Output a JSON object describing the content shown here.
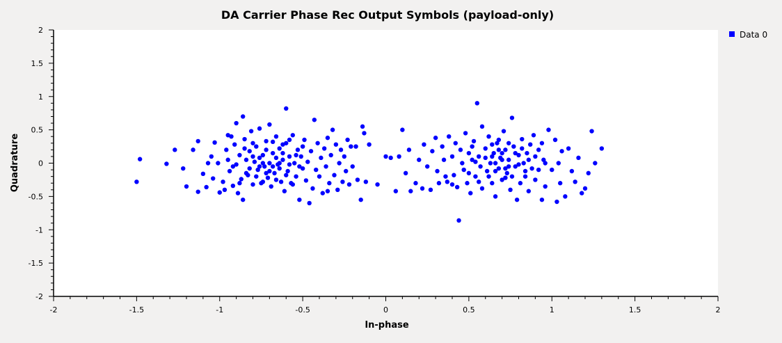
{
  "chart_data": {
    "type": "scatter",
    "title": "DA Carrier Phase Rec Output Symbols (payload-only)",
    "xlabel": "In-phase",
    "ylabel": "Quadrature",
    "xlim": [
      -2,
      2
    ],
    "ylim": [
      -2,
      2
    ],
    "x_ticks": [
      -2,
      -1.5,
      -1,
      -0.5,
      0,
      0.5,
      1,
      1.5,
      2
    ],
    "y_ticks": [
      -2,
      -1.5,
      -1,
      -0.5,
      0,
      0.5,
      1,
      1.5,
      2
    ],
    "x_tick_labels": [
      "-2",
      "-1.5",
      "-1",
      "-0.5",
      "0",
      "0.5",
      "1",
      "1.5",
      "2"
    ],
    "y_tick_labels": [
      "-2",
      "-1.5",
      "-1",
      "-0.5",
      "0",
      "0.5",
      "1",
      "1.5",
      "2"
    ],
    "grid": false,
    "legend_position": "top-right",
    "series": [
      {
        "name": "Data 0",
        "color": "#0000ff",
        "points": [
          [
            -1.5,
            -0.28
          ],
          [
            -1.48,
            0.06
          ],
          [
            -1.32,
            -0.01
          ],
          [
            -1.22,
            -0.08
          ],
          [
            -1.27,
            0.2
          ],
          [
            -1.16,
            0.2
          ],
          [
            -1.13,
            0.33
          ],
          [
            -1.13,
            -0.43
          ],
          [
            -1.1,
            -0.16
          ],
          [
            -1.08,
            -0.36
          ],
          [
            -1.05,
            0.1
          ],
          [
            -1.04,
            -0.23
          ],
          [
            -1.03,
            0.31
          ],
          [
            -1.01,
            0.0
          ],
          [
            -1.0,
            -0.44
          ],
          [
            -0.98,
            -0.28
          ],
          [
            -0.96,
            0.2
          ],
          [
            -0.95,
            0.05
          ],
          [
            -0.94,
            -0.12
          ],
          [
            -0.93,
            0.4
          ],
          [
            -0.92,
            -0.34
          ],
          [
            -0.91,
            0.28
          ],
          [
            -0.9,
            0.6
          ],
          [
            -0.9,
            -0.02
          ],
          [
            -0.89,
            -0.45
          ],
          [
            -0.88,
            0.12
          ],
          [
            -0.87,
            -0.24
          ],
          [
            -0.86,
            0.7
          ],
          [
            -0.86,
            -0.55
          ],
          [
            -0.85,
            0.36
          ],
          [
            -0.84,
            0.05
          ],
          [
            -0.83,
            -0.18
          ],
          [
            -0.82,
            0.18
          ],
          [
            -0.81,
            0.48
          ],
          [
            -0.8,
            -0.32
          ],
          [
            -0.79,
            0.02
          ],
          [
            -0.78,
            0.25
          ],
          [
            -0.77,
            -0.1
          ],
          [
            -0.76,
            0.52
          ],
          [
            -0.75,
            -0.3
          ],
          [
            -0.74,
            0.12
          ],
          [
            -0.73,
            -0.05
          ],
          [
            -0.72,
            0.33
          ],
          [
            -0.71,
            -0.22
          ],
          [
            -0.7,
            0.58
          ],
          [
            -0.7,
            0.0
          ],
          [
            -0.69,
            -0.35
          ],
          [
            -0.68,
            0.15
          ],
          [
            -0.67,
            -0.15
          ],
          [
            -0.66,
            0.4
          ],
          [
            -0.65,
            -0.02
          ],
          [
            -0.64,
            0.22
          ],
          [
            -0.63,
            -0.28
          ],
          [
            -0.62,
            0.05
          ],
          [
            -0.61,
            -0.42
          ],
          [
            -0.6,
            0.82
          ],
          [
            -0.6,
            0.3
          ],
          [
            -0.59,
            -0.12
          ],
          [
            -0.58,
            0.1
          ],
          [
            -0.57,
            -0.3
          ],
          [
            -0.56,
            0.42
          ],
          [
            -0.55,
            0.0
          ],
          [
            -0.54,
            -0.2
          ],
          [
            -0.53,
            0.2
          ],
          [
            -0.52,
            -0.55
          ],
          [
            -0.51,
            0.1
          ],
          [
            -0.5,
            -0.08
          ],
          [
            -0.49,
            0.35
          ],
          [
            -0.48,
            -0.26
          ],
          [
            -0.47,
            0.02
          ],
          [
            -0.46,
            -0.6
          ],
          [
            -0.45,
            0.18
          ],
          [
            -0.44,
            -0.38
          ],
          [
            -0.43,
            0.65
          ],
          [
            -0.42,
            -0.1
          ],
          [
            -0.41,
            0.3
          ],
          [
            -0.4,
            -0.2
          ],
          [
            -0.39,
            0.08
          ],
          [
            -0.38,
            -0.45
          ],
          [
            -0.37,
            0.22
          ],
          [
            -0.36,
            -0.05
          ],
          [
            -0.35,
            0.38
          ],
          [
            -0.34,
            -0.3
          ],
          [
            -0.33,
            0.12
          ],
          [
            -0.32,
            0.5
          ],
          [
            -0.31,
            -0.18
          ],
          [
            -0.3,
            0.28
          ],
          [
            -0.29,
            -0.4
          ],
          [
            -0.28,
            0.0
          ],
          [
            -0.27,
            0.2
          ],
          [
            -0.26,
            -0.28
          ],
          [
            -0.25,
            0.1
          ],
          [
            -0.24,
            -0.12
          ],
          [
            -0.23,
            0.35
          ],
          [
            -0.22,
            -0.32
          ],
          [
            -0.21,
            0.25
          ],
          [
            -0.2,
            -0.05
          ],
          [
            -0.18,
            0.25
          ],
          [
            -0.17,
            -0.25
          ],
          [
            -0.15,
            -0.55
          ],
          [
            -0.14,
            0.55
          ],
          [
            -0.13,
            0.45
          ],
          [
            -0.12,
            -0.28
          ],
          [
            -0.1,
            0.28
          ],
          [
            -0.05,
            -0.32
          ],
          [
            -0.92,
            -0.05
          ],
          [
            -0.88,
            -0.3
          ],
          [
            -0.85,
            0.22
          ],
          [
            -0.82,
            -0.08
          ],
          [
            -0.8,
            0.3
          ],
          [
            -0.78,
            -0.2
          ],
          [
            -0.76,
            0.08
          ],
          [
            -0.74,
            -0.28
          ],
          [
            -0.72,
            0.2
          ],
          [
            -0.7,
            -0.12
          ],
          [
            -0.68,
            0.32
          ],
          [
            -0.66,
            -0.25
          ],
          [
            -0.64,
            0.0
          ],
          [
            -0.62,
            0.28
          ],
          [
            -0.6,
            -0.18
          ],
          [
            -0.58,
            0.35
          ],
          [
            -0.56,
            -0.32
          ],
          [
            -0.54,
            0.12
          ],
          [
            -0.52,
            -0.05
          ],
          [
            -0.5,
            0.25
          ],
          [
            -0.66,
            0.08
          ],
          [
            -0.64,
            -0.08
          ],
          [
            -0.62,
            0.15
          ],
          [
            -0.58,
            -0.02
          ],
          [
            -0.74,
            0.0
          ],
          [
            -0.72,
            -0.15
          ],
          [
            -0.76,
            -0.05
          ],
          [
            -0.8,
            0.1
          ],
          [
            -0.84,
            -0.15
          ],
          [
            -0.68,
            -0.05
          ],
          [
            -1.2,
            -0.35
          ],
          [
            -1.07,
            0.0
          ],
          [
            -0.97,
            -0.4
          ],
          [
            -0.95,
            0.42
          ],
          [
            -0.35,
            -0.42
          ],
          [
            0.0,
            0.1
          ],
          [
            0.03,
            0.08
          ],
          [
            0.06,
            -0.42
          ],
          [
            0.08,
            0.1
          ],
          [
            0.1,
            0.5
          ],
          [
            0.12,
            -0.15
          ],
          [
            0.14,
            0.2
          ],
          [
            0.15,
            -0.42
          ],
          [
            0.18,
            -0.3
          ],
          [
            0.2,
            0.05
          ],
          [
            0.22,
            -0.38
          ],
          [
            0.23,
            0.28
          ],
          [
            0.25,
            -0.05
          ],
          [
            0.27,
            -0.4
          ],
          [
            0.28,
            0.18
          ],
          [
            0.3,
            0.38
          ],
          [
            0.31,
            -0.12
          ],
          [
            0.32,
            -0.3
          ],
          [
            0.34,
            0.25
          ],
          [
            0.35,
            0.05
          ],
          [
            0.37,
            -0.28
          ],
          [
            0.38,
            0.4
          ],
          [
            0.4,
            0.1
          ],
          [
            0.41,
            -0.18
          ],
          [
            0.42,
            0.3
          ],
          [
            0.43,
            -0.36
          ],
          [
            0.44,
            -0.86
          ],
          [
            0.45,
            0.2
          ],
          [
            0.46,
            0.0
          ],
          [
            0.47,
            -0.1
          ],
          [
            0.48,
            0.45
          ],
          [
            0.49,
            -0.3
          ],
          [
            0.5,
            0.15
          ],
          [
            0.51,
            -0.45
          ],
          [
            0.52,
            0.05
          ],
          [
            0.53,
            0.33
          ],
          [
            0.54,
            -0.2
          ],
          [
            0.55,
            0.9
          ],
          [
            0.56,
            0.1
          ],
          [
            0.57,
            -0.05
          ],
          [
            0.58,
            0.55
          ],
          [
            0.58,
            -0.38
          ],
          [
            0.6,
            0.22
          ],
          [
            0.61,
            -0.12
          ],
          [
            0.62,
            0.4
          ],
          [
            0.63,
            0.0
          ],
          [
            0.64,
            -0.3
          ],
          [
            0.65,
            0.15
          ],
          [
            0.66,
            -0.5
          ],
          [
            0.67,
            0.3
          ],
          [
            0.68,
            -0.08
          ],
          [
            0.69,
            0.08
          ],
          [
            0.7,
            -0.25
          ],
          [
            0.71,
            0.48
          ],
          [
            0.72,
            0.2
          ],
          [
            0.73,
            -0.15
          ],
          [
            0.74,
            0.05
          ],
          [
            0.75,
            -0.4
          ],
          [
            0.76,
            0.68
          ],
          [
            0.77,
            0.25
          ],
          [
            0.78,
            -0.05
          ],
          [
            0.79,
            -0.55
          ],
          [
            0.8,
            0.12
          ],
          [
            0.81,
            -0.3
          ],
          [
            0.82,
            0.36
          ],
          [
            0.83,
            0.0
          ],
          [
            0.84,
            -0.2
          ],
          [
            0.85,
            0.15
          ],
          [
            0.86,
            -0.42
          ],
          [
            0.87,
            0.28
          ],
          [
            0.88,
            -0.08
          ],
          [
            0.89,
            0.42
          ],
          [
            0.9,
            -0.25
          ],
          [
            0.92,
            0.2
          ],
          [
            0.94,
            -0.55
          ],
          [
            0.95,
            0.05
          ],
          [
            0.96,
            -0.35
          ],
          [
            0.98,
            0.5
          ],
          [
            1.0,
            -0.1
          ],
          [
            1.02,
            0.35
          ],
          [
            1.03,
            -0.58
          ],
          [
            1.04,
            0.0
          ],
          [
            1.05,
            -0.3
          ],
          [
            1.06,
            0.18
          ],
          [
            1.08,
            -0.5
          ],
          [
            1.1,
            0.22
          ],
          [
            1.12,
            -0.12
          ],
          [
            1.14,
            -0.28
          ],
          [
            1.16,
            0.08
          ],
          [
            1.2,
            -0.38
          ],
          [
            1.22,
            -0.15
          ],
          [
            1.24,
            0.48
          ],
          [
            1.26,
            0.0
          ],
          [
            1.3,
            0.22
          ],
          [
            1.18,
            -0.45
          ],
          [
            0.6,
            0.08
          ],
          [
            0.62,
            -0.2
          ],
          [
            0.64,
            0.28
          ],
          [
            0.66,
            0.0
          ],
          [
            0.68,
            0.2
          ],
          [
            0.7,
            0.05
          ],
          [
            0.72,
            -0.08
          ],
          [
            0.74,
            0.3
          ],
          [
            0.76,
            -0.2
          ],
          [
            0.78,
            0.15
          ],
          [
            0.8,
            -0.02
          ],
          [
            0.82,
            0.22
          ],
          [
            0.84,
            -0.12
          ],
          [
            0.86,
            0.05
          ],
          [
            0.66,
            -0.12
          ],
          [
            0.64,
            0.1
          ],
          [
            0.7,
            0.15
          ],
          [
            0.72,
            -0.22
          ],
          [
            0.74,
            -0.05
          ],
          [
            0.68,
            0.35
          ],
          [
            0.5,
            -0.15
          ],
          [
            0.52,
            0.25
          ],
          [
            0.54,
            0.02
          ],
          [
            0.56,
            -0.28
          ],
          [
            0.9,
            0.1
          ],
          [
            0.92,
            -0.1
          ],
          [
            0.94,
            0.3
          ],
          [
            0.96,
            0.0
          ],
          [
            0.36,
            -0.2
          ],
          [
            0.4,
            -0.32
          ]
        ]
      }
    ]
  }
}
